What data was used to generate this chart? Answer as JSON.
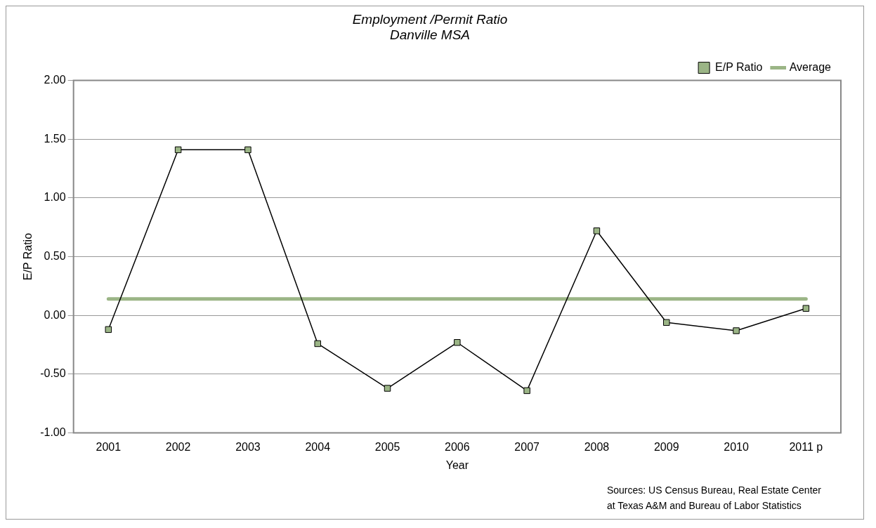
{
  "chart_data": {
    "type": "line",
    "title": "Employment /Permit Ratio\nDanville MSA",
    "xlabel": "Year",
    "ylabel": "E/P Ratio",
    "categories": [
      "2001",
      "2002",
      "2003",
      "2004",
      "2005",
      "2006",
      "2007",
      "2008",
      "2009",
      "2010",
      "2011 p"
    ],
    "series": [
      {
        "name": "E/P Ratio",
        "color": "#9bb586",
        "values": [
          -0.12,
          1.41,
          1.41,
          -0.24,
          -0.62,
          -0.23,
          -0.64,
          0.72,
          -0.06,
          -0.13,
          0.06
        ]
      }
    ],
    "ref_lines": [
      {
        "axis": "y",
        "value": 0.14,
        "label": "Average",
        "color": "#9bb586"
      }
    ],
    "ylim": [
      -1,
      2
    ],
    "yticks": [
      {
        "value": -1,
        "label": "-1.00"
      },
      {
        "value": -0.5,
        "label": "-0.50"
      },
      {
        "value": 0,
        "label": "0.00"
      },
      {
        "value": 0.5,
        "label": "0.50"
      },
      {
        "value": 1,
        "label": "1.00"
      },
      {
        "value": 1.5,
        "label": "1.50"
      },
      {
        "value": 2,
        "label": "2.00"
      }
    ],
    "grid": "y",
    "legend": "top right",
    "marker": "square",
    "line_style": "solid",
    "annotations": [
      "Sources:  US Census Bureau, Real Estate Center\nat Texas A&M and Bureau of Labor Statistics"
    ]
  }
}
